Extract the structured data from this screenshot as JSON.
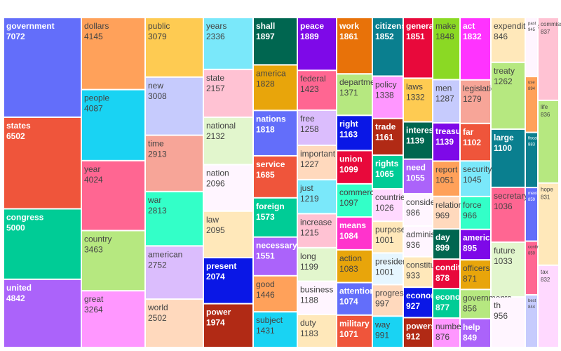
{
  "chart_data": {
    "type": "treemap",
    "items": [
      {
        "label": "government",
        "value": 7072,
        "color": "#636efa"
      },
      {
        "label": "states",
        "value": 6502,
        "color": "#ef553b"
      },
      {
        "label": "congress",
        "value": 5000,
        "color": "#00cc96"
      },
      {
        "label": "united",
        "value": 4842,
        "color": "#ab63fa"
      },
      {
        "label": "dollars",
        "value": 4145,
        "color": "#ffa15a"
      },
      {
        "label": "people",
        "value": 4087,
        "color": "#19d3f3"
      },
      {
        "label": "year",
        "value": 4024,
        "color": "#ff6692"
      },
      {
        "label": "country",
        "value": 3463,
        "color": "#b6e880"
      },
      {
        "label": "great",
        "value": 3264,
        "color": "#ff97ff"
      },
      {
        "label": "public",
        "value": 3079,
        "color": "#fecb52"
      },
      {
        "label": "new",
        "value": 3008,
        "color": "#c6cbfd"
      },
      {
        "label": "time",
        "value": 2913,
        "color": "#f7a598"
      },
      {
        "label": "war",
        "value": 2813,
        "color": "#33ffc8"
      },
      {
        "label": "american",
        "value": 2752,
        "color": "#dbbdfd"
      },
      {
        "label": "world",
        "value": 2502,
        "color": "#ffd9bd"
      },
      {
        "label": "years",
        "value": 2336,
        "color": "#7ae8fa"
      },
      {
        "label": "state",
        "value": 2157,
        "color": "#ffc2d3"
      },
      {
        "label": "national",
        "value": 2132,
        "color": "#e2f6cd"
      },
      {
        "label": "nation",
        "value": 2096,
        "color": "#fff5ff"
      },
      {
        "label": "law",
        "value": 2095,
        "color": "#ffe8ba"
      },
      {
        "label": "present",
        "value": 2074,
        "color": "#0a17e6"
      },
      {
        "label": "power",
        "value": 1974,
        "color": "#b12a15"
      },
      {
        "label": "shall",
        "value": 1897,
        "color": "#006650"
      },
      {
        "label": "america",
        "value": 1828,
        "color": "#e8a50b"
      },
      {
        "label": "nations",
        "value": 1818,
        "color": "#636efa"
      },
      {
        "label": "service",
        "value": 1685,
        "color": "#ef553b"
      },
      {
        "label": "foreign",
        "value": 1573,
        "color": "#00cc96"
      },
      {
        "label": "necessary",
        "value": 1551,
        "color": "#ab63fa"
      },
      {
        "label": "good",
        "value": 1446,
        "color": "#ffa15a"
      },
      {
        "label": "subject",
        "value": 1431,
        "color": "#19d3f3"
      },
      {
        "label": "peace",
        "value": 1889,
        "color": "#7e09e8"
      },
      {
        "label": "federal",
        "value": 1423,
        "color": "#ff6692"
      },
      {
        "label": "free",
        "value": 1258,
        "color": "#dbbdfd"
      },
      {
        "label": "important",
        "value": 1227,
        "color": "#ffd9bd"
      },
      {
        "label": "just",
        "value": 1219,
        "color": "#7ae8fa"
      },
      {
        "label": "increase",
        "value": 1215,
        "color": "#ffc2d3"
      },
      {
        "label": "long",
        "value": 1199,
        "color": "#e2f6cd"
      },
      {
        "label": "business",
        "value": 1188,
        "color": "#fff5ff"
      },
      {
        "label": "duty",
        "value": 1183,
        "color": "#ffe8ba"
      },
      {
        "label": "work",
        "value": 1861,
        "color": "#e87209"
      },
      {
        "label": "department",
        "value": 1371,
        "color": "#b6e880"
      },
      {
        "label": "right",
        "value": 1163,
        "color": "#0a17e6"
      },
      {
        "label": "union",
        "value": 1099,
        "color": "#e8093b"
      },
      {
        "label": "commerce",
        "value": 1097,
        "color": "#33ffc8"
      },
      {
        "label": "means",
        "value": 1084,
        "color": "#ff33cc"
      },
      {
        "label": "action",
        "value": 1083,
        "color": "#e8a50b"
      },
      {
        "label": "attention",
        "value": 1074,
        "color": "#636efa"
      },
      {
        "label": "military",
        "value": 1071,
        "color": "#ef553b"
      },
      {
        "label": "citizens",
        "value": 1852,
        "color": "#0a7f8f"
      },
      {
        "label": "policy",
        "value": 1338,
        "color": "#ff97ff"
      },
      {
        "label": "trade",
        "value": 1161,
        "color": "#b12a15"
      },
      {
        "label": "rights",
        "value": 1065,
        "color": "#00cc96"
      },
      {
        "label": "countries",
        "value": 1026,
        "color": "#ffd9ff"
      },
      {
        "label": "purpose",
        "value": 1001,
        "color": "#ffe8ba"
      },
      {
        "label": "president",
        "value": 1001,
        "color": "#e6f6ff"
      },
      {
        "label": "progress",
        "value": 997,
        "color": "#ffd9bd"
      },
      {
        "label": "way",
        "value": 991,
        "color": "#19d3f3"
      },
      {
        "label": "general",
        "value": 1851,
        "color": "#e8093b"
      },
      {
        "label": "laws",
        "value": 1332,
        "color": "#fecb52"
      },
      {
        "label": "interests",
        "value": 1139,
        "color": "#006650"
      },
      {
        "label": "need",
        "value": 1055,
        "color": "#ab63fa"
      },
      {
        "label": "consideration",
        "value": 986,
        "color": "#fff5ff"
      },
      {
        "label": "administration",
        "value": 936,
        "color": "#fff5ff"
      },
      {
        "label": "constitution",
        "value": 933,
        "color": "#ffe8ba"
      },
      {
        "label": "economic",
        "value": 927,
        "color": "#0a17e6"
      },
      {
        "label": "powers",
        "value": 912,
        "color": "#b12a15"
      },
      {
        "label": "make",
        "value": 1848,
        "color": "#8bd924"
      },
      {
        "label": "men",
        "value": 1287,
        "color": "#c6cbfd"
      },
      {
        "label": "treasury",
        "value": 1139,
        "color": "#7e09e8"
      },
      {
        "label": "report",
        "value": 1051,
        "color": "#ffa15a"
      },
      {
        "label": "relations",
        "value": 969,
        "color": "#ffd9bd"
      },
      {
        "label": "day",
        "value": 899,
        "color": "#006650"
      },
      {
        "label": "condition",
        "value": 878,
        "color": "#e8093b"
      },
      {
        "label": "economy",
        "value": 877,
        "color": "#00cc96"
      },
      {
        "label": "number",
        "value": 876,
        "color": "#ff97ff"
      },
      {
        "label": "act",
        "value": 1832,
        "color": "#ff33ff"
      },
      {
        "label": "legislation",
        "value": 1279,
        "color": "#f7a598"
      },
      {
        "label": "far",
        "value": 1102,
        "color": "#ef553b"
      },
      {
        "label": "security",
        "value": 1045,
        "color": "#7ae8fa"
      },
      {
        "label": "force",
        "value": 966,
        "color": "#33ffc8"
      },
      {
        "label": "americans",
        "value": 895,
        "color": "#7e09e8"
      },
      {
        "label": "officers",
        "value": 871,
        "color": "#e8a50b"
      },
      {
        "label": "governments",
        "value": 856,
        "color": "#b6e880"
      },
      {
        "label": "help",
        "value": 849,
        "color": "#ab63fa"
      },
      {
        "label": "expenditures",
        "value": 846,
        "color": "#ffe8ba"
      },
      {
        "label": "treaty",
        "value": 1262,
        "color": "#b6e880"
      },
      {
        "label": "large",
        "value": 1100,
        "color": "#0a7f8f"
      },
      {
        "label": "secretary",
        "value": 1036,
        "color": "#ff6692"
      },
      {
        "label": "future",
        "value": 1033,
        "color": "#e2f6cd"
      },
      {
        "label": "th",
        "value": 956,
        "color": "#fff5ff"
      },
      {
        "label": "past",
        "value": 945,
        "color": "#fff5ff"
      },
      {
        "label": "use",
        "value": 894,
        "color": "#ffa15a"
      },
      {
        "label": "fiscal",
        "value": 883,
        "color": "#0a7f8f"
      },
      {
        "label": "mexico",
        "value": 859,
        "color": "#636efa"
      },
      {
        "label": "continue",
        "value": 859,
        "color": "#ff6692"
      },
      {
        "label": "best",
        "value": 844,
        "color": "#c6cbfd"
      },
      {
        "label": "commission",
        "value": 837,
        "color": "#ffc2d3"
      },
      {
        "label": "life",
        "value": 836,
        "color": "#b6e880"
      },
      {
        "label": "hope",
        "value": 831,
        "color": "#ffe8ba"
      },
      {
        "label": "tax",
        "value": 832,
        "color": "#ffd9ff"
      }
    ],
    "columns": [
      {
        "start": 0,
        "count": 4
      },
      {
        "start": 4,
        "count": 5
      },
      {
        "start": 9,
        "count": 6
      },
      {
        "start": 15,
        "count": 7
      },
      {
        "start": 22,
        "count": 8
      },
      {
        "start": 30,
        "count": 9
      },
      {
        "start": 39,
        "count": 9
      },
      {
        "start": 48,
        "count": 9
      },
      {
        "start": 57,
        "count": 9
      },
      {
        "start": 66,
        "count": 9
      },
      {
        "start": 75,
        "count": 9
      },
      {
        "start": 84,
        "count": 17,
        "sub_columns": [
          {
            "start": 84,
            "count": 6
          },
          {
            "start": 90,
            "count": 6
          },
          {
            "start": 96,
            "count": 5
          }
        ]
      }
    ]
  }
}
